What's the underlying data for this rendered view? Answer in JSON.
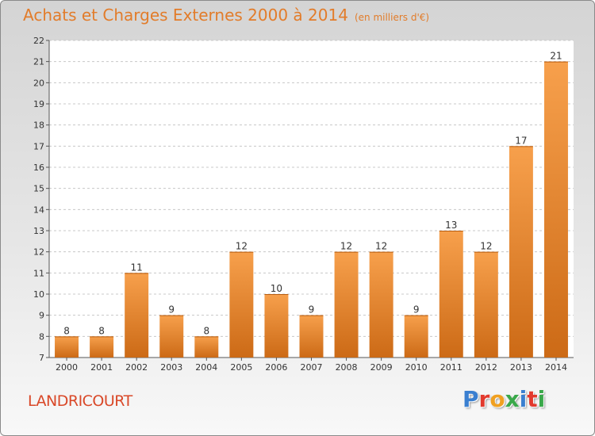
{
  "header": {
    "title": "Achats et Charges Externes 2000 à 2014",
    "subtitle": "(en milliers d'€)"
  },
  "footer": {
    "commune": "LANDRICOURT",
    "logo_letters": [
      {
        "char": "P",
        "color": "#3a7fd0"
      },
      {
        "char": "r",
        "color": "#e23a2e"
      },
      {
        "char": "o",
        "color": "#f0a020"
      },
      {
        "char": "x",
        "color": "#3aa84a"
      },
      {
        "char": "i",
        "color": "#3a7fd0"
      },
      {
        "char": "t",
        "color": "#e23a2e"
      },
      {
        "char": "i",
        "color": "#3aa84a"
      }
    ]
  },
  "colors": {
    "bar_light": "#f7a04c",
    "bar_dark": "#cc6a16",
    "title": "#e27c2a",
    "commune": "#d94828"
  },
  "chart_data": {
    "type": "bar",
    "title": "Achats et Charges Externes 2000 à 2014",
    "subtitle": "(en milliers d'€)",
    "categories": [
      "2000",
      "2001",
      "2002",
      "2003",
      "2004",
      "2005",
      "2006",
      "2007",
      "2008",
      "2009",
      "2010",
      "2011",
      "2012",
      "2013",
      "2014"
    ],
    "values": [
      8,
      8,
      11,
      9,
      8,
      12,
      10,
      9,
      12,
      12,
      9,
      13,
      12,
      17,
      21
    ],
    "ylim": [
      7,
      22
    ],
    "yticks": [
      7,
      8,
      9,
      10,
      11,
      12,
      13,
      14,
      15,
      16,
      17,
      18,
      19,
      20,
      21,
      22
    ],
    "grid": true,
    "xlabel": "",
    "ylabel": ""
  }
}
